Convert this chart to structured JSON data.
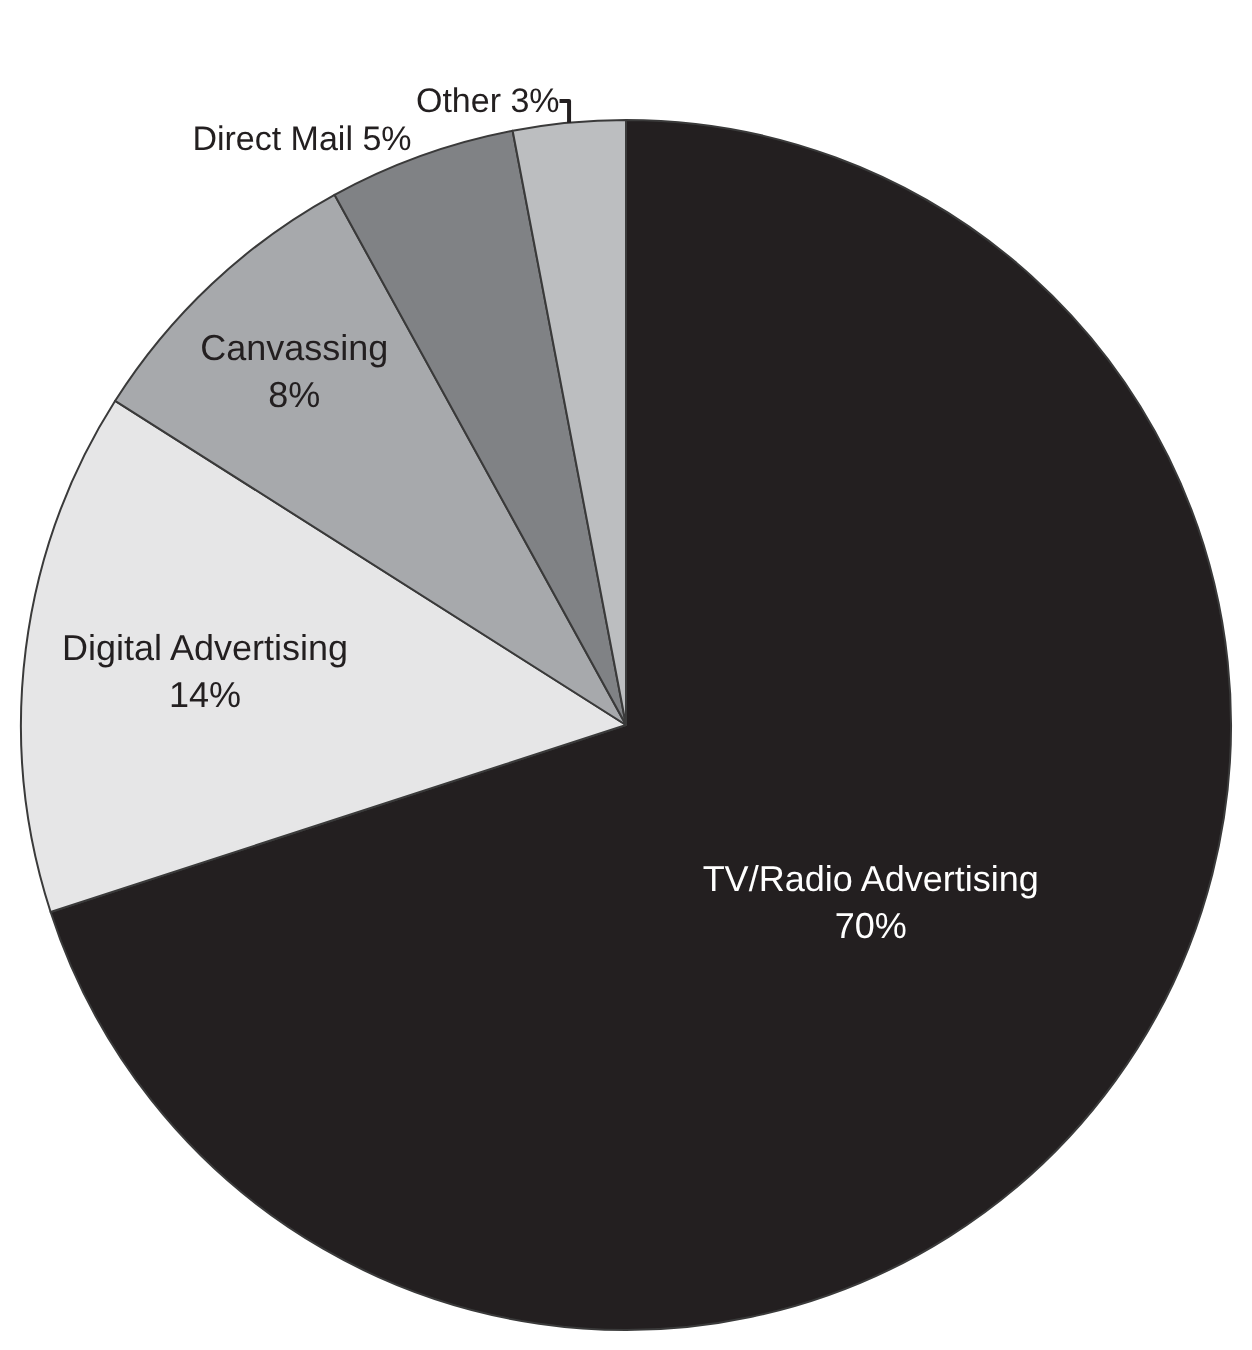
{
  "chart_data": {
    "type": "pie",
    "categories": [
      "TV/Radio Advertising",
      "Digital Advertising",
      "Canvassing",
      "Direct Mail",
      "Other"
    ],
    "values": [
      70,
      14,
      8,
      5,
      3
    ],
    "value_labels": [
      "70%",
      "14%",
      "8%",
      "5%",
      "3%"
    ],
    "colors": [
      "#231f20",
      "#e6e6e7",
      "#a7a9ac",
      "#808285",
      "#bcbec0"
    ],
    "legend": false
  }
}
